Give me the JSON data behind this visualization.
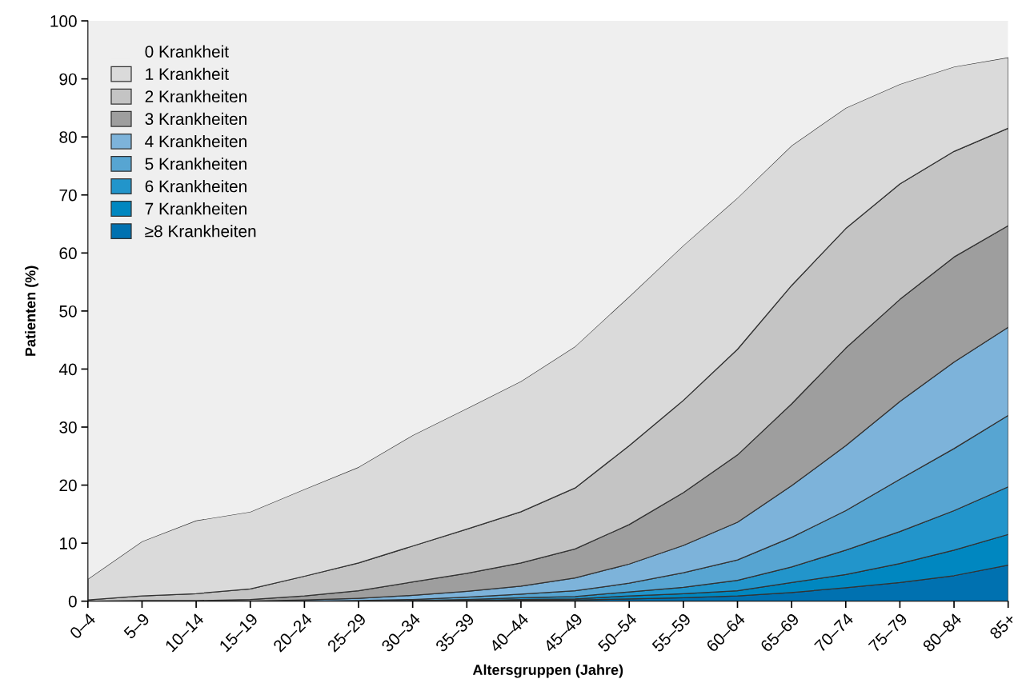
{
  "chart_data": {
    "type": "area",
    "stacked": true,
    "xlabel": "Altersgruppen (Jahre)",
    "ylabel": "Patienten (%)",
    "categories": [
      "0–4",
      "5–9",
      "10–14",
      "15–19",
      "20–24",
      "25–29",
      "30–34",
      "35–39",
      "40–44",
      "45–49",
      "50–54",
      "55–59",
      "60–64",
      "65–69",
      "70–74",
      "75–79",
      "80–84",
      "85+"
    ],
    "ylim": [
      0,
      100
    ],
    "yticks": [
      0,
      10,
      20,
      30,
      40,
      50,
      60,
      70,
      80,
      90,
      100
    ],
    "grid": false,
    "legend": "top left",
    "series": [
      {
        "name": "≥8 Krankheiten",
        "color": "#0071b0",
        "values": [
          0,
          0,
          0,
          0,
          0,
          0,
          0,
          0,
          0.1,
          0.2,
          0.4,
          0.6,
          0.9,
          1.5,
          2.3,
          3.2,
          4.4,
          6.2
        ]
      },
      {
        "name": "7 Krankheiten",
        "color": "#0087c0",
        "values": [
          0,
          0,
          0,
          0,
          0,
          0,
          0,
          0.1,
          0.2,
          0.2,
          0.5,
          0.7,
          0.9,
          1.7,
          2.3,
          3.3,
          4.4,
          5.3
        ]
      },
      {
        "name": "6 Krankheiten",
        "color": "#2295cb",
        "values": [
          0,
          0,
          0,
          0,
          0,
          0,
          0.1,
          0.2,
          0.3,
          0.4,
          0.7,
          1.1,
          1.8,
          2.7,
          4.2,
          5.5,
          6.8,
          8.2
        ]
      },
      {
        "name": "5 Krankheiten",
        "color": "#57a5d2",
        "values": [
          0,
          0,
          0,
          0,
          0,
          0.1,
          0.2,
          0.4,
          0.6,
          1.0,
          1.5,
          2.5,
          3.5,
          5.1,
          6.8,
          9.0,
          10.7,
          12.3
        ]
      },
      {
        "name": "4 Krankheiten",
        "color": "#7db3da",
        "values": [
          0,
          0,
          0,
          0,
          0.2,
          0.4,
          0.7,
          1.0,
          1.4,
          2.2,
          3.3,
          4.7,
          6.5,
          8.9,
          11.2,
          13.4,
          14.9,
          15.2
        ]
      },
      {
        "name": "3 Krankheiten",
        "color": "#9e9e9e",
        "values": [
          0,
          0.1,
          0.1,
          0.3,
          0.7,
          1.3,
          2.3,
          3.1,
          4.0,
          5.0,
          6.8,
          9.1,
          11.6,
          14.1,
          16.8,
          17.6,
          18.1,
          17.5
        ]
      },
      {
        "name": "2 Krankheiten",
        "color": "#c4c4c4",
        "values": [
          0.2,
          0.8,
          1.2,
          1.8,
          3.4,
          4.8,
          6.2,
          7.6,
          8.8,
          10.5,
          13.6,
          15.9,
          18.2,
          20.4,
          20.6,
          19.9,
          18.2,
          16.8
        ]
      },
      {
        "name": "1 Krankheit",
        "color": "#dadada",
        "values": [
          3.6,
          9.4,
          12.6,
          13.3,
          15.0,
          16.5,
          19.1,
          20.8,
          22.5,
          24.4,
          25.7,
          26.7,
          26.1,
          24.1,
          20.8,
          17.2,
          14.6,
          12.2
        ]
      },
      {
        "name": "0 Krankheit",
        "color": "#efefef",
        "values": [
          96.2,
          89.7,
          86.1,
          84.6,
          80.7,
          76.9,
          71.4,
          66.8,
          62.1,
          56.1,
          47.5,
          38.7,
          30.5,
          21.5,
          15.0,
          10.9,
          7.9,
          6.3
        ]
      }
    ]
  }
}
